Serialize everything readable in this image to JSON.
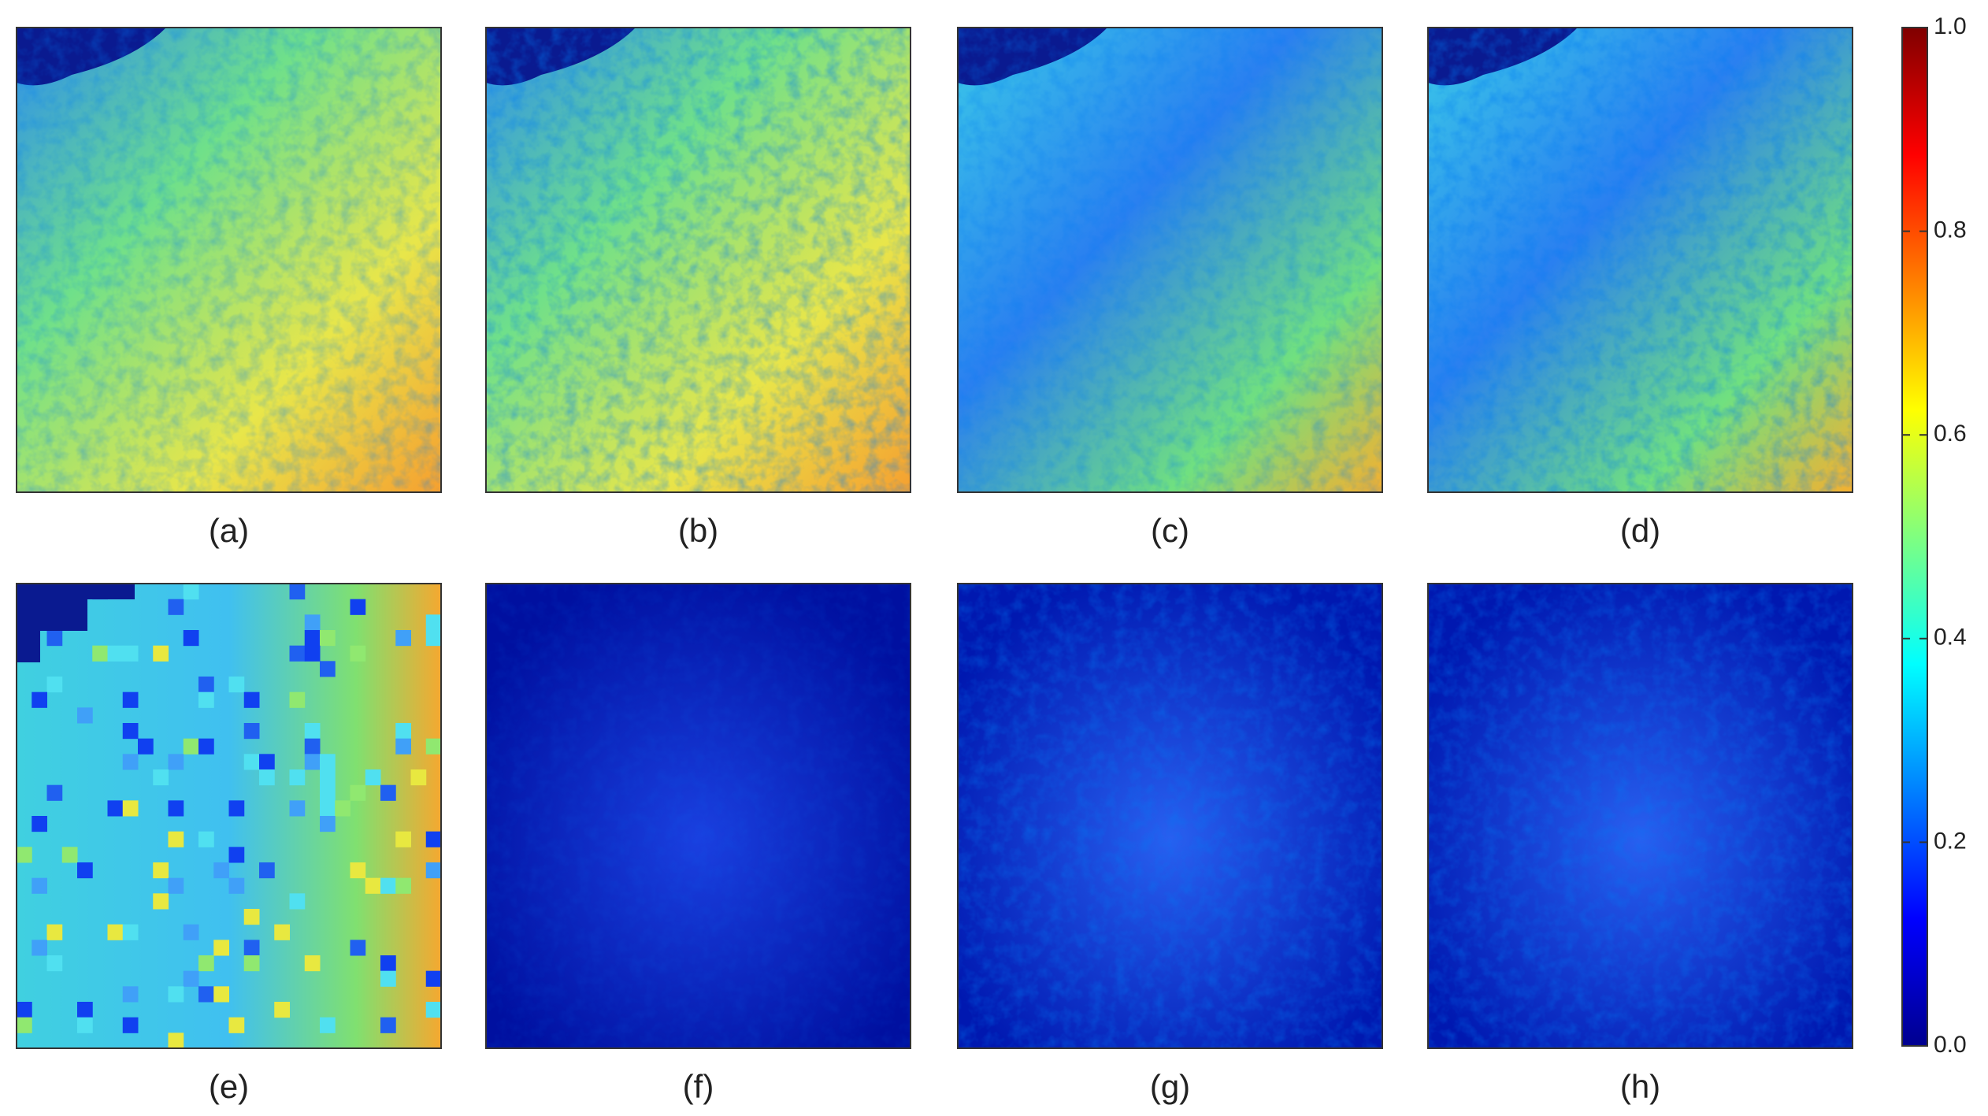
{
  "panels": [
    {
      "label": "(a)"
    },
    {
      "label": "(b)"
    },
    {
      "label": "(c)"
    },
    {
      "label": "(d)"
    },
    {
      "label": "(e)"
    },
    {
      "label": "(f)"
    },
    {
      "label": "(g)"
    },
    {
      "label": "(h)"
    }
  ],
  "colorbar": {
    "lim": [
      0,
      1
    ],
    "ticks": [
      {
        "value": 0,
        "label": "0.0"
      },
      0.2,
      0.4,
      0.6,
      0.8,
      {
        "value": 1,
        "label": "1.0"
      }
    ]
  }
}
